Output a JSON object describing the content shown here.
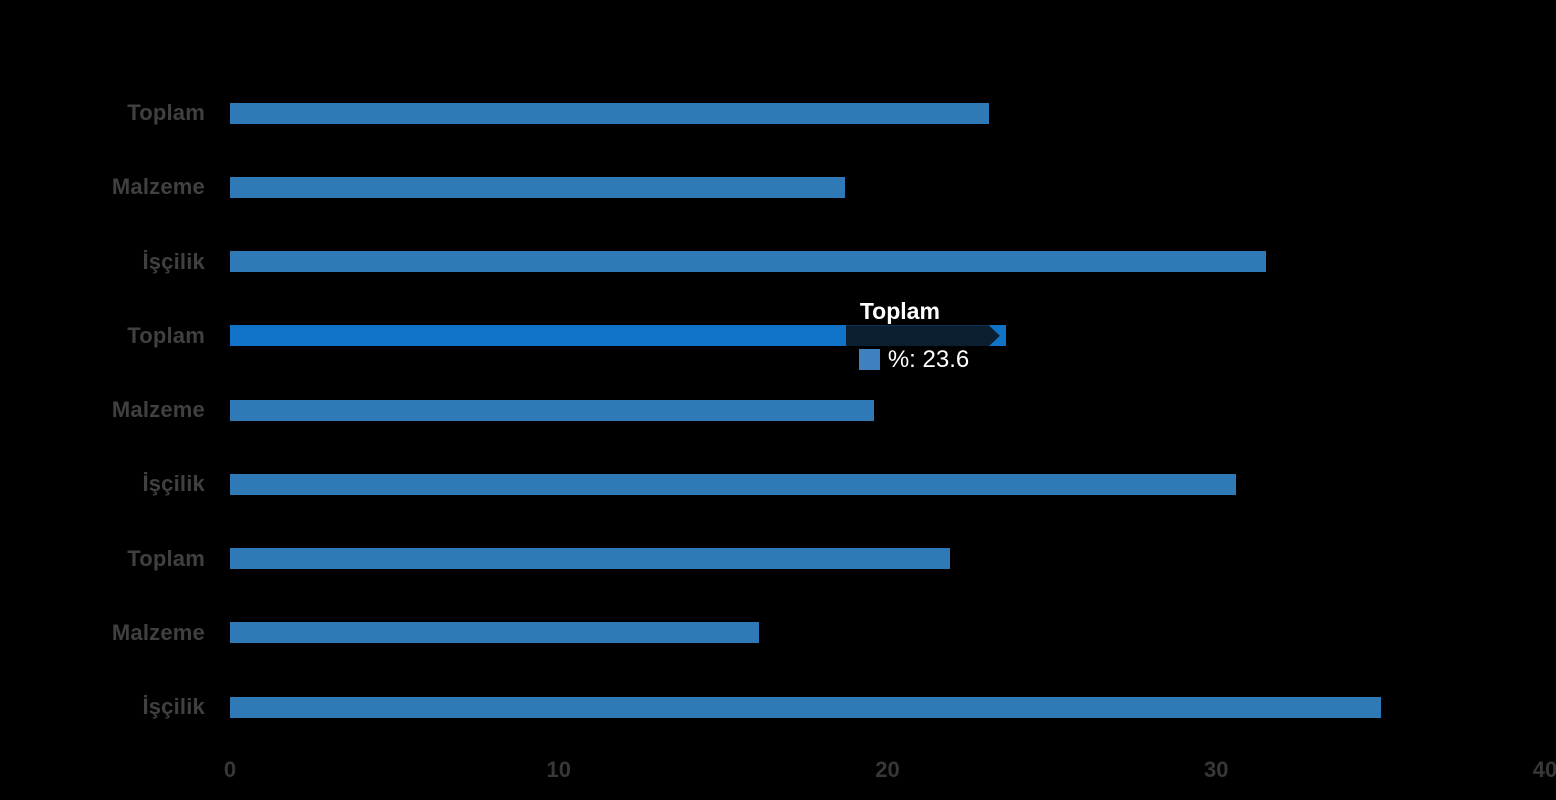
{
  "chart_data": {
    "type": "bar",
    "orientation": "horizontal",
    "title": "",
    "categories": [
      "Toplam",
      "Malzeme",
      "İşçilik",
      "Toplam",
      "Malzeme",
      "İşçilik",
      "Toplam",
      "Malzeme",
      "İşçilik"
    ],
    "values": [
      23.1,
      18.7,
      31.5,
      23.6,
      19.6,
      30.6,
      21.9,
      16.1,
      35.0
    ],
    "value_unit": "%",
    "xlim": [
      0,
      40
    ],
    "x_ticks": [
      "0",
      "10",
      "20",
      "30",
      "40"
    ],
    "x_tick_values": [
      0,
      10,
      20,
      30,
      40
    ],
    "grid": false,
    "legend": false,
    "colors": {
      "background": "#000000",
      "bar": "#2F79B6",
      "highlighted_bar": "#1173C8",
      "category_label": "#404040",
      "tick_label": "#373737"
    },
    "highlight": {
      "index": 3
    },
    "tooltip": {
      "for_index": 3,
      "title": "Toplam",
      "series_label": "%",
      "value": "23.6",
      "text": "%: 23.6",
      "swatch_color": "#3D81BE",
      "background": "#0C1F30",
      "text_color": "#FFFFFF"
    }
  }
}
